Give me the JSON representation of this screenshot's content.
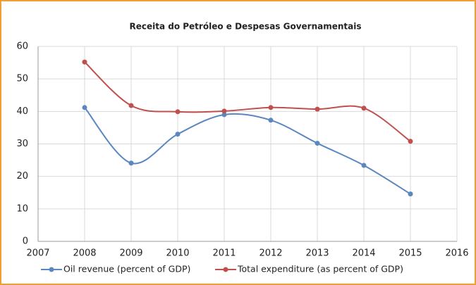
{
  "chart_data": {
    "type": "line",
    "title": "Receita do Petróleo e Despesas Governamentais",
    "x": [
      2008,
      2009,
      2010,
      2011,
      2012,
      2013,
      2014,
      2015
    ],
    "series": [
      {
        "name": "Oil revenue (percent of GDP)",
        "color": "#5b87c0",
        "values": [
          41.2,
          24.1,
          33.0,
          39.0,
          37.3,
          30.2,
          23.4,
          14.6
        ]
      },
      {
        "name": "Total expenditure (as percent of GDP)",
        "color": "#c0504d",
        "values": [
          55.2,
          41.8,
          39.9,
          40.1,
          41.2,
          40.7,
          41.0,
          30.8
        ]
      }
    ],
    "xlim": [
      2007,
      2016
    ],
    "xticks": [
      2007,
      2008,
      2009,
      2010,
      2011,
      2012,
      2013,
      2014,
      2015,
      2016
    ],
    "ylim": [
      0,
      60
    ],
    "yticks": [
      0,
      10,
      20,
      30,
      40,
      50,
      60
    ],
    "grid": true,
    "smooth": true,
    "legend": "bottom"
  }
}
